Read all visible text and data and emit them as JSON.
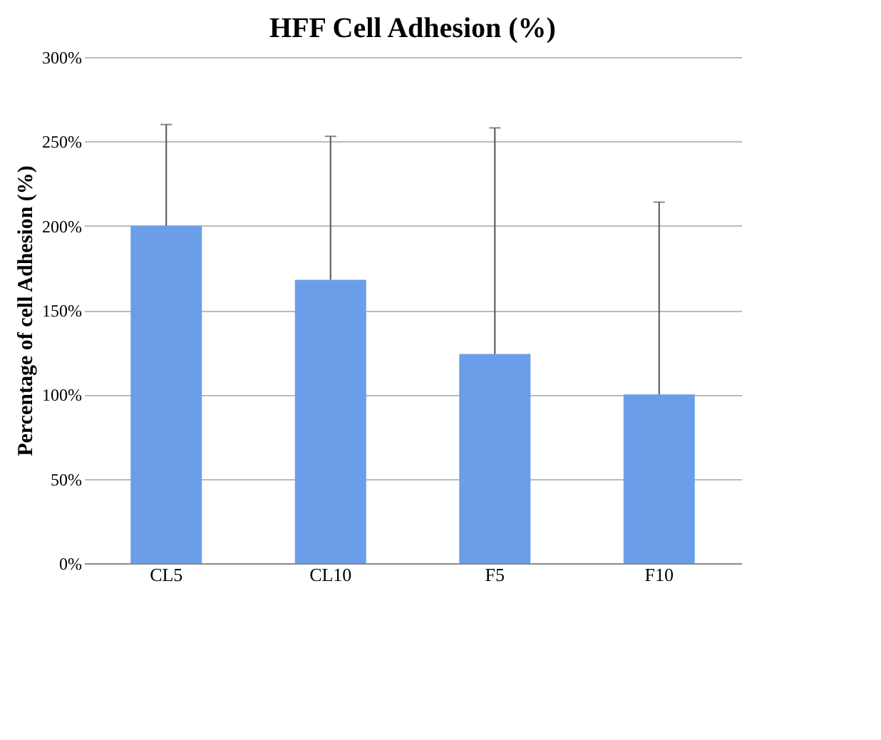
{
  "chart_data": {
    "type": "bar",
    "title": "HFF Cell Adhesion (%)",
    "ylabel": "Percentage of cell Adhesion (%)",
    "categories": [
      "CL5",
      "CL10",
      "F5",
      "F10"
    ],
    "values": [
      200,
      168,
      124,
      100
    ],
    "errors": [
      [
        200,
        260
      ],
      [
        168,
        253
      ],
      [
        124,
        258
      ],
      [
        100,
        214
      ]
    ],
    "color": "#6a9ee8",
    "ylim": [
      0,
      300
    ],
    "yticks": [
      {
        "value": 0,
        "label": "0%"
      },
      {
        "value": 50,
        "label": "50%"
      },
      {
        "value": 100,
        "label": "100%"
      },
      {
        "value": 150,
        "label": "150%"
      },
      {
        "value": 200,
        "label": "200%"
      },
      {
        "value": 250,
        "label": "250%"
      },
      {
        "value": 300,
        "label": "300%"
      }
    ],
    "grid": "y"
  }
}
